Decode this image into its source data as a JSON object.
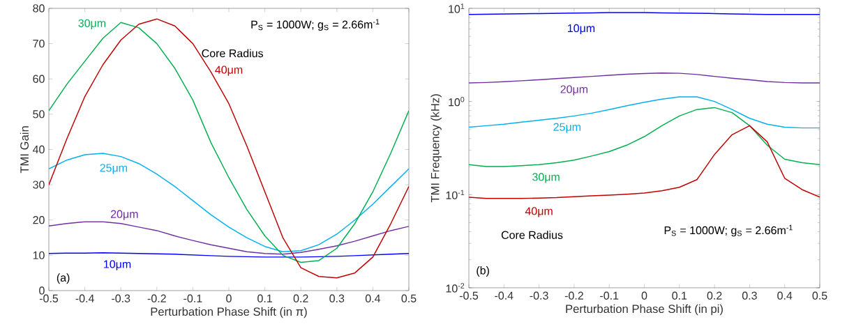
{
  "chart_data": [
    {
      "type": "line",
      "xlabel": "Perturbation Phase Shift (in π)",
      "ylabel": "TMI Gain",
      "xlim": [
        -0.5,
        0.5
      ],
      "ylim": [
        0,
        80
      ],
      "xticks": [
        -0.5,
        -0.4,
        -0.3,
        -0.2,
        -0.1,
        0,
        0.1,
        0.2,
        0.3,
        0.4,
        0.5
      ],
      "yticks": [
        0,
        10,
        20,
        30,
        40,
        50,
        60,
        70,
        80
      ],
      "marker": "none",
      "line_style": "solid",
      "x": [
        -0.5,
        -0.45,
        -0.4,
        -0.35,
        -0.3,
        -0.25,
        -0.2,
        -0.15,
        -0.1,
        -0.05,
        0,
        0.05,
        0.1,
        0.15,
        0.2,
        0.25,
        0.3,
        0.35,
        0.4,
        0.45,
        0.5
      ],
      "series": [
        {
          "name": "10μm",
          "color": "#0000ff",
          "values": [
            10.5,
            10.6,
            10.6,
            10.7,
            10.6,
            10.5,
            10.4,
            10.3,
            10.1,
            9.9,
            9.7,
            9.6,
            9.5,
            9.5,
            9.5,
            9.6,
            9.7,
            9.9,
            10.1,
            10.3,
            10.5
          ]
        },
        {
          "name": "20μm",
          "color": "#7030a0",
          "values": [
            18.3,
            19,
            19.5,
            19.5,
            19,
            18,
            17,
            15.5,
            14.2,
            13,
            12,
            11,
            10.5,
            10.3,
            10.8,
            11.7,
            12.7,
            14,
            15.5,
            17,
            18.2
          ]
        },
        {
          "name": "25μm",
          "color": "#00b0f0",
          "values": [
            34.5,
            37,
            38.5,
            38.9,
            38,
            36,
            33,
            29.5,
            25.5,
            21.5,
            18,
            15,
            12.5,
            11,
            11.3,
            13,
            16,
            20,
            24.5,
            29.5,
            34.5
          ]
        },
        {
          "name": "30μm",
          "color": "#00b050",
          "values": [
            51,
            58.5,
            65,
            71.5,
            76,
            74.5,
            70,
            63,
            54,
            42,
            32,
            23,
            15.5,
            10,
            8,
            8.5,
            12,
            19,
            28,
            39,
            51
          ]
        },
        {
          "name": "40μm",
          "color": "#c00000",
          "values": [
            30,
            43,
            55,
            64,
            71,
            75.5,
            77,
            75,
            70,
            62,
            53,
            41,
            28,
            15,
            6.5,
            4,
            3.6,
            5,
            9.5,
            19,
            29.5
          ]
        }
      ],
      "annotations": [
        "P$_{S}$ = 1000W;  g$_{S}$ = 2.66m$^{-1}$",
        "Core Radius",
        "(a)"
      ]
    },
    {
      "type": "line",
      "xlabel": "Perturbation Phase Shift (in pi)",
      "ylabel": "TMI Frequency  (kHz)",
      "log": "y",
      "xlim": [
        -0.5,
        0.5
      ],
      "ylim": [
        0.01,
        10
      ],
      "xticks": [
        -0.5,
        -0.4,
        -0.3,
        -0.2,
        -0.1,
        0,
        0.1,
        0.2,
        0.3,
        0.4,
        0.5
      ],
      "yticks": [
        {
          "value": 0.01,
          "label": "10$^{-2}$"
        },
        {
          "value": 0.1,
          "label": "10$^{-1}$"
        },
        {
          "value": 1,
          "label": "10$^{0}$"
        },
        {
          "value": 10,
          "label": "10$^{1}$"
        }
      ],
      "marker": "none",
      "line_style": "solid",
      "x": [
        -0.5,
        -0.45,
        -0.4,
        -0.35,
        -0.3,
        -0.25,
        -0.2,
        -0.15,
        -0.1,
        -0.05,
        0,
        0.05,
        0.1,
        0.15,
        0.2,
        0.25,
        0.3,
        0.35,
        0.4,
        0.45,
        0.5
      ],
      "series": [
        {
          "name": "10μm",
          "color": "#0000ff",
          "values": [
            8.6,
            8.65,
            8.7,
            8.75,
            8.8,
            8.85,
            8.9,
            8.95,
            9.0,
            9.0,
            9.0,
            8.95,
            8.9,
            8.85,
            8.8,
            8.7,
            8.65,
            8.6,
            8.6,
            8.6,
            8.6
          ]
        },
        {
          "name": "20μm",
          "color": "#7030a0",
          "values": [
            1.58,
            1.6,
            1.63,
            1.67,
            1.71,
            1.76,
            1.81,
            1.86,
            1.91,
            1.96,
            2.0,
            2.02,
            2.01,
            1.95,
            1.86,
            1.78,
            1.71,
            1.64,
            1.6,
            1.58,
            1.58
          ]
        },
        {
          "name": "25μm",
          "color": "#00b0f0",
          "values": [
            0.53,
            0.55,
            0.57,
            0.6,
            0.63,
            0.66,
            0.7,
            0.75,
            0.82,
            0.9,
            0.98,
            1.06,
            1.12,
            1.12,
            1.0,
            0.82,
            0.66,
            0.57,
            0.53,
            0.52,
            0.52
          ]
        },
        {
          "name": "30μm",
          "color": "#00b050",
          "values": [
            0.21,
            0.2,
            0.2,
            0.205,
            0.21,
            0.22,
            0.235,
            0.26,
            0.29,
            0.34,
            0.42,
            0.55,
            0.7,
            0.82,
            0.86,
            0.76,
            0.55,
            0.34,
            0.24,
            0.22,
            0.21
          ]
        },
        {
          "name": "40μm",
          "color": "#c00000",
          "values": [
            0.094,
            0.091,
            0.091,
            0.091,
            0.092,
            0.093,
            0.095,
            0.097,
            0.099,
            0.101,
            0.104,
            0.11,
            0.12,
            0.145,
            0.27,
            0.44,
            0.55,
            0.37,
            0.15,
            0.113,
            0.094
          ]
        }
      ],
      "annotations": [
        "P$_{S}$ = 1000W;  g$_{S}$ = 2.66m$^{-1}$",
        "Core Radius",
        "(b)"
      ]
    }
  ]
}
